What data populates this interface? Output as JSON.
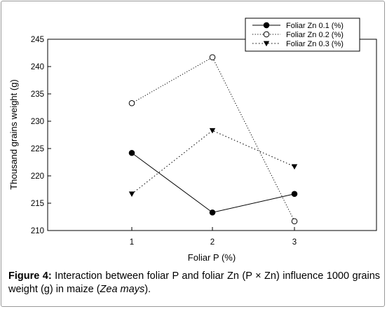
{
  "chart_data": {
    "type": "line",
    "x": [
      1,
      2,
      3
    ],
    "xlabel": "Foliar P (%)",
    "ylabel": "Thousand grains weight (g)",
    "ylim": [
      210,
      245
    ],
    "yticks": [
      210,
      215,
      220,
      225,
      230,
      235,
      240,
      245
    ],
    "xticks": [
      1,
      2,
      3
    ],
    "grid": false,
    "legend_position": "top-right",
    "series": [
      {
        "name": "Foliar Zn 0.1 (%)",
        "values": [
          224.2,
          213.3,
          216.7
        ],
        "marker": "filled-circle",
        "line": "solid",
        "color": "#000000"
      },
      {
        "name": "Foliar Zn 0.2 (%)",
        "values": [
          233.3,
          241.7,
          211.7
        ],
        "marker": "open-circle",
        "line": "dotted",
        "color": "#000000"
      },
      {
        "name": "Foliar Zn 0.3 (%)",
        "values": [
          216.7,
          228.3,
          221.7
        ],
        "marker": "filled-triangle-down",
        "line": "dash-dot",
        "color": "#000000"
      }
    ]
  },
  "caption": {
    "label": "Figure 4:",
    "text_before": " Interaction between foliar P and foliar Zn (P × Zn) influence 1000 grains weight (g) in maize (",
    "species": "Zea mays",
    "text_after": ")."
  }
}
